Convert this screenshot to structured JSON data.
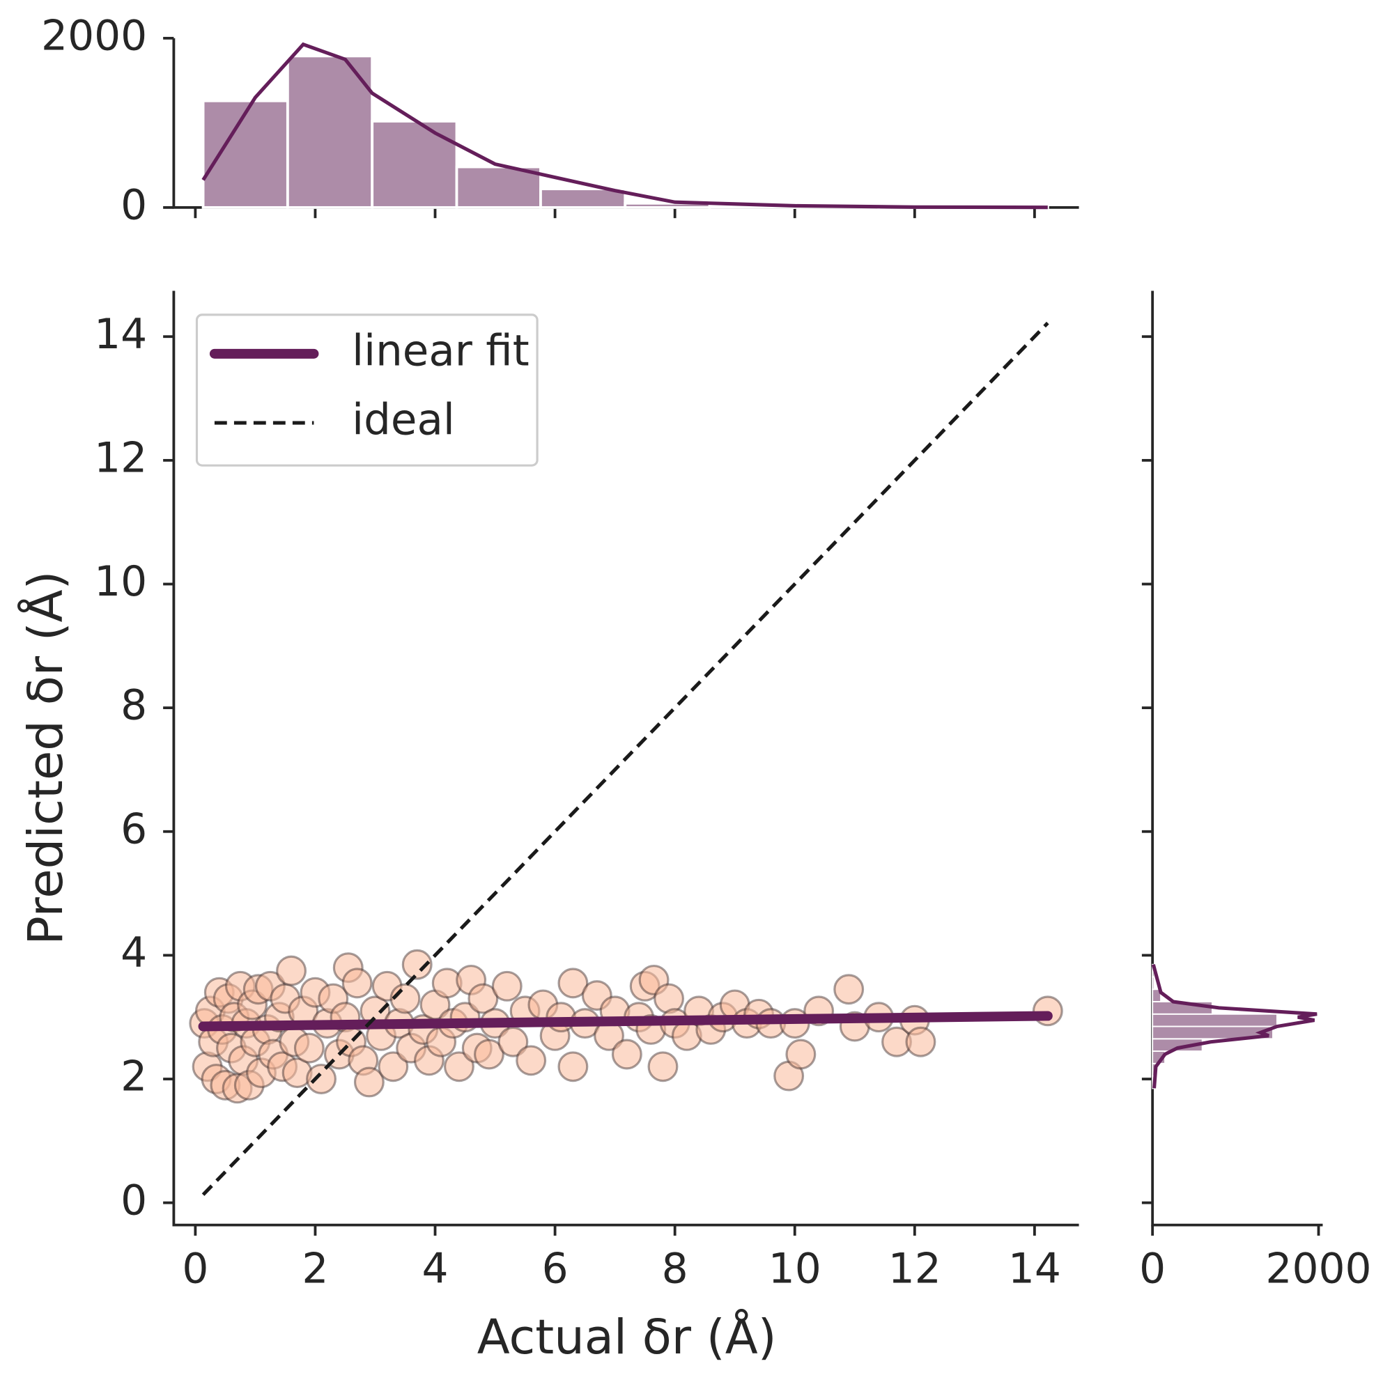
{
  "chart_data": [
    {
      "type": "scatter",
      "x_label": "Actual δr (Å)",
      "y_label": "Predicted δr (Å)",
      "xlim": [
        -0.36,
        14.74
      ],
      "ylim": [
        -0.36,
        14.74
      ],
      "xticks": [
        0,
        2,
        4,
        6,
        8,
        10,
        12,
        14
      ],
      "yticks": [
        0,
        2,
        4,
        6,
        8,
        10,
        12,
        14
      ],
      "legend": "upper left",
      "points": {
        "color": "#f9b99a",
        "edgecolor": "#3a2a2a",
        "x": [
          0.15,
          0.2,
          0.25,
          0.3,
          0.35,
          0.4,
          0.45,
          0.5,
          0.55,
          0.6,
          0.65,
          0.7,
          0.75,
          0.8,
          0.85,
          0.9,
          0.95,
          1.0,
          1.05,
          1.1,
          1.2,
          1.25,
          1.3,
          1.4,
          1.45,
          1.5,
          1.6,
          1.65,
          1.7,
          1.8,
          1.9,
          2.0,
          2.1,
          2.2,
          2.3,
          2.4,
          2.5,
          2.55,
          2.6,
          2.7,
          2.8,
          2.9,
          3.0,
          3.1,
          3.2,
          3.3,
          3.4,
          3.5,
          3.6,
          3.7,
          3.8,
          3.9,
          4.0,
          4.1,
          4.2,
          4.3,
          4.4,
          4.5,
          4.6,
          4.7,
          4.8,
          4.9,
          5.0,
          5.2,
          5.3,
          5.5,
          5.6,
          5.8,
          6.0,
          6.1,
          6.3,
          6.3,
          6.5,
          6.7,
          6.9,
          7.0,
          7.2,
          7.4,
          7.5,
          7.6,
          7.65,
          7.8,
          7.9,
          8.0,
          8.2,
          8.4,
          8.6,
          8.8,
          9.0,
          9.2,
          9.4,
          9.6,
          9.9,
          10.0,
          10.1,
          10.4,
          10.9,
          11.0,
          11.4,
          11.7,
          12.0,
          12.1,
          14.22
        ],
        "values": [
          2.9,
          2.2,
          3.1,
          2.6,
          2.0,
          3.4,
          2.8,
          1.9,
          3.3,
          2.5,
          3.0,
          1.85,
          3.5,
          2.3,
          2.9,
          1.9,
          3.2,
          2.6,
          3.45,
          2.1,
          2.8,
          3.5,
          2.4,
          3.0,
          2.2,
          3.3,
          3.75,
          2.6,
          2.1,
          3.1,
          2.5,
          3.4,
          2.0,
          2.9,
          3.3,
          2.4,
          3.0,
          3.8,
          2.6,
          3.55,
          2.3,
          1.95,
          3.1,
          2.7,
          3.5,
          2.2,
          2.9,
          3.3,
          2.5,
          3.85,
          2.8,
          2.3,
          3.2,
          2.6,
          3.55,
          2.9,
          2.2,
          3.0,
          3.6,
          2.5,
          3.3,
          2.4,
          2.9,
          3.5,
          2.6,
          3.1,
          2.3,
          3.2,
          2.7,
          3.0,
          3.55,
          2.2,
          2.9,
          3.35,
          2.7,
          3.1,
          2.4,
          3.0,
          3.5,
          2.8,
          3.6,
          2.2,
          3.3,
          2.9,
          2.7,
          3.1,
          2.8,
          3.0,
          3.2,
          2.9,
          3.05,
          2.9,
          2.05,
          2.9,
          2.4,
          3.1,
          3.45,
          2.85,
          3.0,
          2.6,
          2.95,
          2.6,
          3.1
        ]
      },
      "series": [
        {
          "name": "linear fit",
          "color": "#641e5a",
          "style": "solid",
          "x": [
            0.13,
            14.22
          ],
          "values": [
            2.85,
            3.02
          ]
        },
        {
          "name": "ideal",
          "color": "#1a1a1a",
          "style": "dashed",
          "x": [
            0.13,
            14.22
          ],
          "values": [
            0.13,
            14.22
          ]
        }
      ]
    },
    {
      "type": "histogram",
      "orientation": "vertical",
      "color": "#ad8ca8",
      "kde_color": "#641e5a",
      "bins": [
        0.13,
        1.54,
        2.95,
        4.36,
        5.76,
        7.17,
        8.58,
        9.99,
        11.4,
        12.81,
        14.22
      ],
      "counts": [
        1260,
        1790,
        1020,
        480,
        220,
        50,
        12,
        5,
        2,
        2
      ],
      "kde": {
        "x": [
          0.13,
          1.0,
          1.8,
          2.5,
          2.95,
          4,
          5,
          6,
          7,
          8,
          9,
          10,
          12,
          14.22
        ],
        "values": [
          325,
          1300,
          1927,
          1750,
          1350,
          880,
          513,
          356,
          200,
          63,
          42,
          20,
          5,
          2
        ]
      },
      "xlim": [
        -0.36,
        14.74
      ],
      "xticks": [
        0,
        2,
        4,
        6,
        8,
        10,
        12,
        14
      ],
      "ylim": [
        0,
        2000
      ],
      "yticks": [
        0,
        2000
      ]
    },
    {
      "type": "histogram",
      "orientation": "horizontal",
      "color": "#ad8ca8",
      "kde_color": "#641e5a",
      "bins": [
        1.85,
        2.05,
        2.25,
        2.45,
        2.65,
        2.85,
        3.05,
        3.25,
        3.45,
        3.65,
        3.85
      ],
      "counts": [
        10,
        40,
        150,
        600,
        1450,
        1500,
        720,
        100,
        20,
        5
      ],
      "kde": {
        "y": [
          1.85,
          2.2,
          2.4,
          2.5,
          2.6,
          2.7,
          2.75,
          2.85,
          2.95,
          3.0,
          3.05,
          3.15,
          3.25,
          3.4,
          3.6,
          3.85
        ],
        "values": [
          20,
          40,
          150,
          300,
          700,
          1400,
          1300,
          1500,
          1950,
          1750,
          1980,
          800,
          250,
          100,
          60,
          10
        ]
      },
      "xlim": [
        0,
        2050
      ],
      "xticks": [
        0,
        2000
      ],
      "ylim": [
        -0.36,
        14.74
      ],
      "yticks": [
        0,
        2,
        4,
        6,
        8,
        10,
        12,
        14
      ]
    }
  ]
}
